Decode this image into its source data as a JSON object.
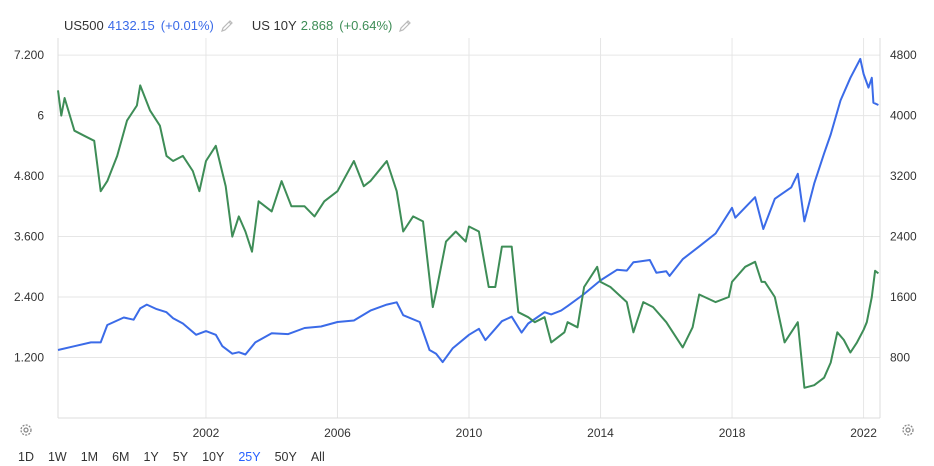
{
  "legend": {
    "s1_symbol": "US500",
    "s1_value": "4132.15",
    "s1_change": "(+0.01%)",
    "s1_color": "#3b6be8",
    "s2_symbol": "US 10Y",
    "s2_value": "2.868",
    "s2_change": "(+0.64%)",
    "s2_color": "#3e8d57"
  },
  "ranges": [
    "1D",
    "1W",
    "1M",
    "6M",
    "1Y",
    "5Y",
    "10Y",
    "25Y",
    "50Y",
    "All"
  ],
  "active_range": "25Y",
  "chart_data": {
    "type": "line",
    "x_ticks": [
      "2002",
      "2006",
      "2010",
      "2014",
      "2018",
      "2022"
    ],
    "y_left_ticks": [
      "1.200",
      "2.400",
      "3.600",
      "4.800",
      "6",
      "7.200"
    ],
    "y_left_values": [
      1.2,
      2.4,
      3.6,
      4.8,
      6,
      7.2
    ],
    "y_left_range": [
      0,
      7.5
    ],
    "y_right_ticks": [
      "800",
      "1600",
      "2400",
      "3200",
      "4000",
      "4800"
    ],
    "y_right_values": [
      800,
      1600,
      2400,
      3200,
      4000,
      4800
    ],
    "y_right_range": [
      0,
      5000
    ],
    "x_range": [
      1997.5,
      2022.5
    ],
    "series": [
      {
        "name": "US500",
        "axis": "right",
        "color": "#3b6be8",
        "points": [
          [
            1997.5,
            900
          ],
          [
            1998,
            950
          ],
          [
            1998.5,
            1000
          ],
          [
            1998.8,
            1000
          ],
          [
            1999,
            1230
          ],
          [
            1999.5,
            1330
          ],
          [
            1999.8,
            1300
          ],
          [
            2000,
            1450
          ],
          [
            2000.2,
            1500
          ],
          [
            2000.5,
            1440
          ],
          [
            2000.8,
            1400
          ],
          [
            2001,
            1320
          ],
          [
            2001.3,
            1250
          ],
          [
            2001.7,
            1100
          ],
          [
            2002,
            1150
          ],
          [
            2002.3,
            1100
          ],
          [
            2002.5,
            950
          ],
          [
            2002.8,
            850
          ],
          [
            2003,
            870
          ],
          [
            2003.2,
            840
          ],
          [
            2003.5,
            1000
          ],
          [
            2004,
            1120
          ],
          [
            2004.5,
            1110
          ],
          [
            2005,
            1190
          ],
          [
            2005.5,
            1210
          ],
          [
            2006,
            1270
          ],
          [
            2006.5,
            1290
          ],
          [
            2007,
            1420
          ],
          [
            2007.5,
            1500
          ],
          [
            2007.8,
            1530
          ],
          [
            2008,
            1360
          ],
          [
            2008.5,
            1270
          ],
          [
            2008.8,
            900
          ],
          [
            2009,
            850
          ],
          [
            2009.2,
            740
          ],
          [
            2009.5,
            920
          ],
          [
            2010,
            1100
          ],
          [
            2010.3,
            1180
          ],
          [
            2010.5,
            1030
          ],
          [
            2010.8,
            1180
          ],
          [
            2011,
            1280
          ],
          [
            2011.3,
            1340
          ],
          [
            2011.6,
            1130
          ],
          [
            2011.8,
            1250
          ],
          [
            2012,
            1310
          ],
          [
            2012.3,
            1400
          ],
          [
            2012.5,
            1370
          ],
          [
            2012.8,
            1420
          ],
          [
            2013,
            1480
          ],
          [
            2013.5,
            1640
          ],
          [
            2014,
            1820
          ],
          [
            2014.5,
            1960
          ],
          [
            2014.8,
            1950
          ],
          [
            2015,
            2060
          ],
          [
            2015.5,
            2090
          ],
          [
            2015.7,
            1920
          ],
          [
            2016,
            1940
          ],
          [
            2016.1,
            1880
          ],
          [
            2016.5,
            2100
          ],
          [
            2017,
            2270
          ],
          [
            2017.5,
            2440
          ],
          [
            2018,
            2780
          ],
          [
            2018.1,
            2650
          ],
          [
            2018.7,
            2920
          ],
          [
            2018.95,
            2500
          ],
          [
            2019.3,
            2900
          ],
          [
            2019.5,
            2960
          ],
          [
            2019.8,
            3050
          ],
          [
            2020,
            3230
          ],
          [
            2020.2,
            2600
          ],
          [
            2020.5,
            3100
          ],
          [
            2020.8,
            3500
          ],
          [
            2021,
            3750
          ],
          [
            2021.3,
            4200
          ],
          [
            2021.6,
            4500
          ],
          [
            2021.9,
            4750
          ],
          [
            2022,
            4550
          ],
          [
            2022.15,
            4370
          ],
          [
            2022.25,
            4500
          ],
          [
            2022.3,
            4170
          ],
          [
            2022.45,
            4140
          ]
        ]
      },
      {
        "name": "US 10Y",
        "axis": "left",
        "color": "#3e8d57",
        "points": [
          [
            1997.5,
            6.5
          ],
          [
            1997.6,
            6.0
          ],
          [
            1997.7,
            6.35
          ],
          [
            1998,
            5.7
          ],
          [
            1998.3,
            5.6
          ],
          [
            1998.6,
            5.5
          ],
          [
            1998.8,
            4.5
          ],
          [
            1999,
            4.7
          ],
          [
            1999.3,
            5.2
          ],
          [
            1999.6,
            5.9
          ],
          [
            1999.9,
            6.2
          ],
          [
            2000,
            6.6
          ],
          [
            2000.3,
            6.1
          ],
          [
            2000.6,
            5.8
          ],
          [
            2000.8,
            5.2
          ],
          [
            2001,
            5.1
          ],
          [
            2001.3,
            5.2
          ],
          [
            2001.6,
            4.9
          ],
          [
            2001.8,
            4.5
          ],
          [
            2002,
            5.1
          ],
          [
            2002.3,
            5.4
          ],
          [
            2002.6,
            4.6
          ],
          [
            2002.8,
            3.6
          ],
          [
            2003,
            4.0
          ],
          [
            2003.2,
            3.7
          ],
          [
            2003.4,
            3.3
          ],
          [
            2003.6,
            4.3
          ],
          [
            2004,
            4.1
          ],
          [
            2004.3,
            4.7
          ],
          [
            2004.6,
            4.2
          ],
          [
            2005,
            4.2
          ],
          [
            2005.3,
            4.0
          ],
          [
            2005.6,
            4.3
          ],
          [
            2006,
            4.5
          ],
          [
            2006.5,
            5.1
          ],
          [
            2006.8,
            4.6
          ],
          [
            2007,
            4.7
          ],
          [
            2007.5,
            5.1
          ],
          [
            2007.8,
            4.5
          ],
          [
            2008,
            3.7
          ],
          [
            2008.3,
            4.0
          ],
          [
            2008.6,
            3.9
          ],
          [
            2008.9,
            2.2
          ],
          [
            2009,
            2.5
          ],
          [
            2009.3,
            3.5
          ],
          [
            2009.6,
            3.7
          ],
          [
            2009.9,
            3.5
          ],
          [
            2010,
            3.8
          ],
          [
            2010.3,
            3.7
          ],
          [
            2010.6,
            2.6
          ],
          [
            2010.8,
            2.6
          ],
          [
            2011,
            3.4
          ],
          [
            2011.3,
            3.4
          ],
          [
            2011.5,
            2.1
          ],
          [
            2011.8,
            2.0
          ],
          [
            2012,
            1.9
          ],
          [
            2012.3,
            2.0
          ],
          [
            2012.5,
            1.5
          ],
          [
            2012.9,
            1.7
          ],
          [
            2013,
            1.9
          ],
          [
            2013.3,
            1.8
          ],
          [
            2013.5,
            2.6
          ],
          [
            2013.9,
            3.0
          ],
          [
            2014,
            2.7
          ],
          [
            2014.3,
            2.6
          ],
          [
            2014.8,
            2.3
          ],
          [
            2015,
            1.7
          ],
          [
            2015.3,
            2.3
          ],
          [
            2015.6,
            2.2
          ],
          [
            2016,
            1.9
          ],
          [
            2016.5,
            1.4
          ],
          [
            2016.8,
            1.8
          ],
          [
            2017,
            2.45
          ],
          [
            2017.5,
            2.3
          ],
          [
            2017.9,
            2.4
          ],
          [
            2018,
            2.7
          ],
          [
            2018.4,
            3.0
          ],
          [
            2018.7,
            3.1
          ],
          [
            2018.9,
            2.7
          ],
          [
            2019,
            2.7
          ],
          [
            2019.3,
            2.4
          ],
          [
            2019.6,
            1.5
          ],
          [
            2019.9,
            1.8
          ],
          [
            2020,
            1.9
          ],
          [
            2020.2,
            0.6
          ],
          [
            2020.5,
            0.65
          ],
          [
            2020.8,
            0.8
          ],
          [
            2021,
            1.1
          ],
          [
            2021.2,
            1.7
          ],
          [
            2021.4,
            1.55
          ],
          [
            2021.6,
            1.3
          ],
          [
            2021.8,
            1.5
          ],
          [
            2022,
            1.75
          ],
          [
            2022.1,
            1.9
          ],
          [
            2022.25,
            2.4
          ],
          [
            2022.35,
            2.92
          ],
          [
            2022.45,
            2.87
          ]
        ]
      }
    ]
  }
}
